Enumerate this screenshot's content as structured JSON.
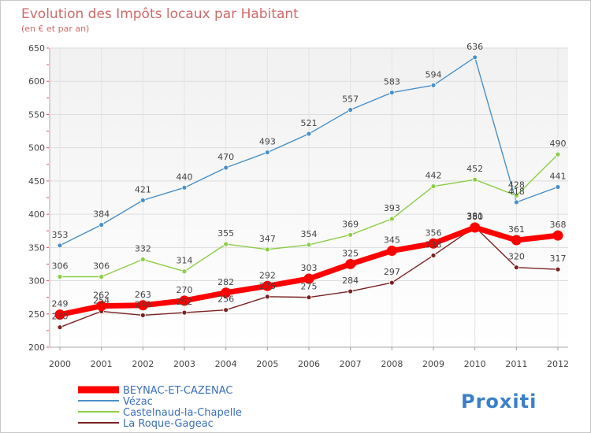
{
  "chart_data": {
    "type": "line",
    "title": "Evolution des Impôts locaux par Habitant",
    "subtitle": "(en € et par an)",
    "xlabel": "",
    "ylabel": "",
    "x": [
      "2000",
      "2001",
      "2002",
      "2003",
      "2004",
      "2005",
      "2006",
      "2007",
      "2008",
      "2009",
      "2010",
      "2011",
      "2012"
    ],
    "ylim": [
      200,
      650
    ],
    "yticks": [
      200,
      250,
      300,
      350,
      400,
      450,
      500,
      550,
      600,
      650
    ],
    "grid": true,
    "legend_position": "bottom-left",
    "series": [
      {
        "name": "BEYNAC-ET-CAZENAC",
        "color": "#ff0000",
        "values": [
          249,
          262,
          263,
          270,
          282,
          292,
          303,
          325,
          345,
          356,
          380,
          361,
          368
        ]
      },
      {
        "name": "Vézac",
        "color": "#4a90c8",
        "values": [
          353,
          384,
          421,
          440,
          470,
          493,
          521,
          557,
          583,
          594,
          636,
          418,
          441
        ]
      },
      {
        "name": "Castelnaud-la-Chapelle",
        "color": "#8ccd46",
        "values": [
          306,
          306,
          332,
          314,
          355,
          347,
          354,
          369,
          393,
          442,
          452,
          428,
          490
        ]
      },
      {
        "name": "La Roque-Gageac",
        "color": "#7a2222",
        "values": [
          230,
          254,
          248,
          252,
          256,
          276,
          275,
          284,
          297,
          338,
          381,
          320,
          317
        ]
      }
    ]
  },
  "logo": {
    "text": "Proxiti"
  }
}
